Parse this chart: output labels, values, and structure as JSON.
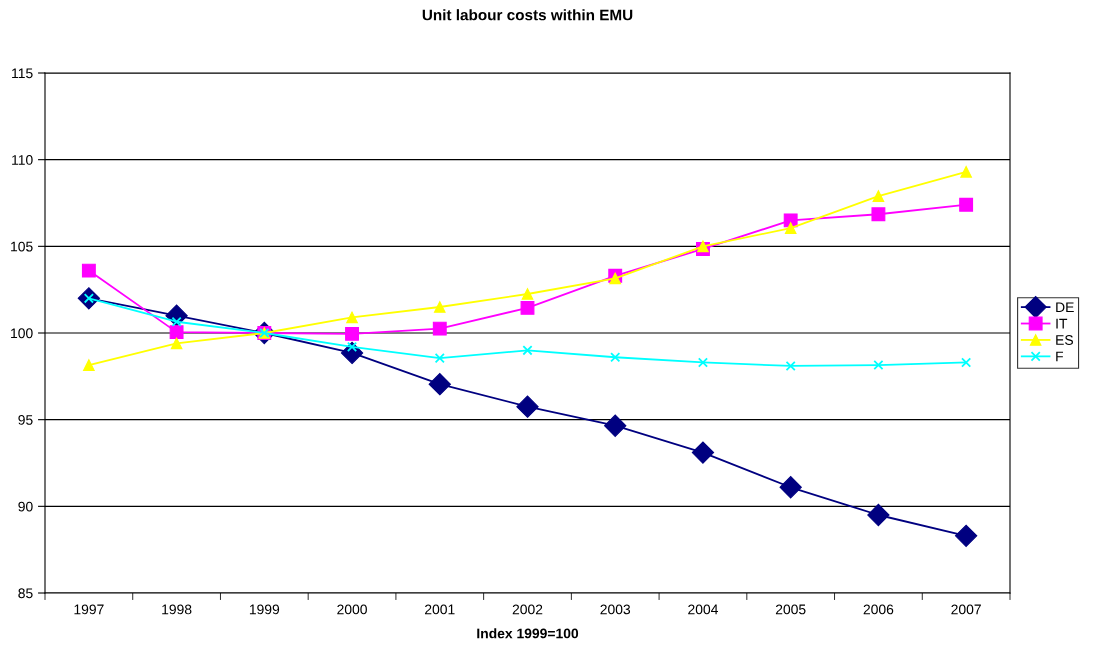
{
  "chart_data": {
    "type": "line",
    "title": "Unit labour costs within EMU",
    "xlabel": "Index 1999=100",
    "categories": [
      "1997",
      "1998",
      "1999",
      "2000",
      "2001",
      "2002",
      "2003",
      "2004",
      "2005",
      "2006",
      "2007"
    ],
    "series": [
      {
        "name": "DE",
        "color": "#000080",
        "marker": "diamond",
        "values": [
          102.0,
          101.0,
          100.0,
          98.85,
          97.05,
          95.75,
          94.65,
          93.1,
          91.1,
          89.5,
          88.3
        ]
      },
      {
        "name": "IT",
        "color": "#ff00ff",
        "marker": "square",
        "values": [
          103.6,
          100.05,
          100.0,
          99.95,
          100.25,
          101.45,
          103.3,
          104.85,
          106.5,
          106.85,
          107.4
        ]
      },
      {
        "name": "ES",
        "color": "#ffff00",
        "marker": "triangle",
        "values": [
          98.15,
          99.4,
          100.0,
          100.9,
          101.5,
          102.25,
          103.15,
          105.0,
          106.05,
          107.9,
          109.3
        ]
      },
      {
        "name": "F",
        "color": "#00ffff",
        "marker": "cross",
        "values": [
          102.0,
          100.65,
          100.0,
          99.2,
          98.55,
          99.0,
          98.6,
          98.3,
          98.1,
          98.15,
          98.3
        ]
      }
    ],
    "ylim": [
      85,
      115
    ],
    "yticks": [
      85,
      90,
      95,
      100,
      105,
      110,
      115
    ],
    "grid": "y",
    "legend": "right",
    "line_style": "solid"
  }
}
